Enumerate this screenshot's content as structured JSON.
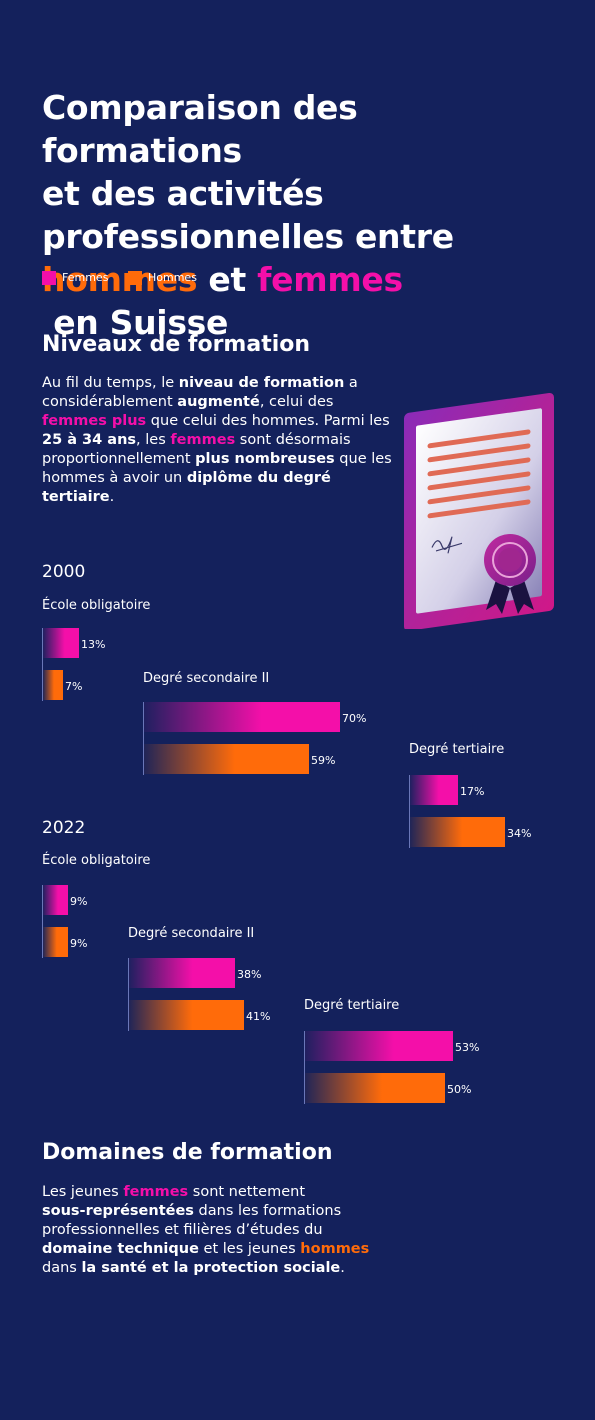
{
  "title": {
    "line1": "Comparaison des formations",
    "line2": "et des activités",
    "line3": "professionnelles entre",
    "word_hommes": "hommes",
    "word_et": " et ",
    "word_femmes": "femmes",
    "word_suisse": " en Suisse"
  },
  "legend": {
    "femmes": "Femmes",
    "hommes": "Hommes"
  },
  "colors": {
    "femmes": "#f40fa9",
    "hommes": "#ff6b0a",
    "background": "#14215c"
  },
  "section1": {
    "heading": "Niveaux de formation",
    "p": [
      "Au fil du temps, le ",
      "niveau de formation",
      " a",
      "considérablement ",
      "augmenté",
      ", celui des",
      "femmes plus",
      " que celui des hommes. Parmi les",
      "25 à 34 ans",
      ", les ",
      "femmes",
      " sont désormais",
      "proportionnellement ",
      "plus nombreuses",
      " que les",
      "hommes à avoir un ",
      "diplôme du degré",
      "tertiaire",
      "."
    ]
  },
  "chart_data": [
    {
      "type": "bar",
      "title": "2000",
      "categories": [
        "École obligatoire",
        "Degré secondaire II",
        "Degré tertiaire"
      ],
      "series": [
        {
          "name": "Femmes",
          "values": [
            13,
            70,
            17
          ],
          "labels": [
            "13%",
            "70%",
            "17%"
          ]
        },
        {
          "name": "Hommes",
          "values": [
            7,
            59,
            34
          ],
          "labels": [
            "7%",
            "59%",
            "34%"
          ]
        }
      ]
    },
    {
      "type": "bar",
      "title": "2022",
      "categories": [
        "École obligatoire",
        "Degré secondaire II",
        "Degré tertiaire"
      ],
      "series": [
        {
          "name": "Femmes",
          "values": [
            9,
            38,
            53
          ],
          "labels": [
            "9%",
            "38%",
            "53%"
          ]
        },
        {
          "name": "Hommes",
          "values": [
            9,
            41,
            50
          ],
          "labels": [
            "9%",
            "41%",
            "50%"
          ]
        }
      ]
    }
  ],
  "section2": {
    "heading": "Domaines de formation",
    "p": [
      "Les jeunes ",
      "femmes",
      " sont nettement",
      "sous-représentées",
      " dans les formations",
      "professionnelles et filières d’études du",
      "domaine technique",
      " et les jeunes ",
      "hommes",
      "dans ",
      "la santé et la protection sociale",
      "."
    ]
  }
}
